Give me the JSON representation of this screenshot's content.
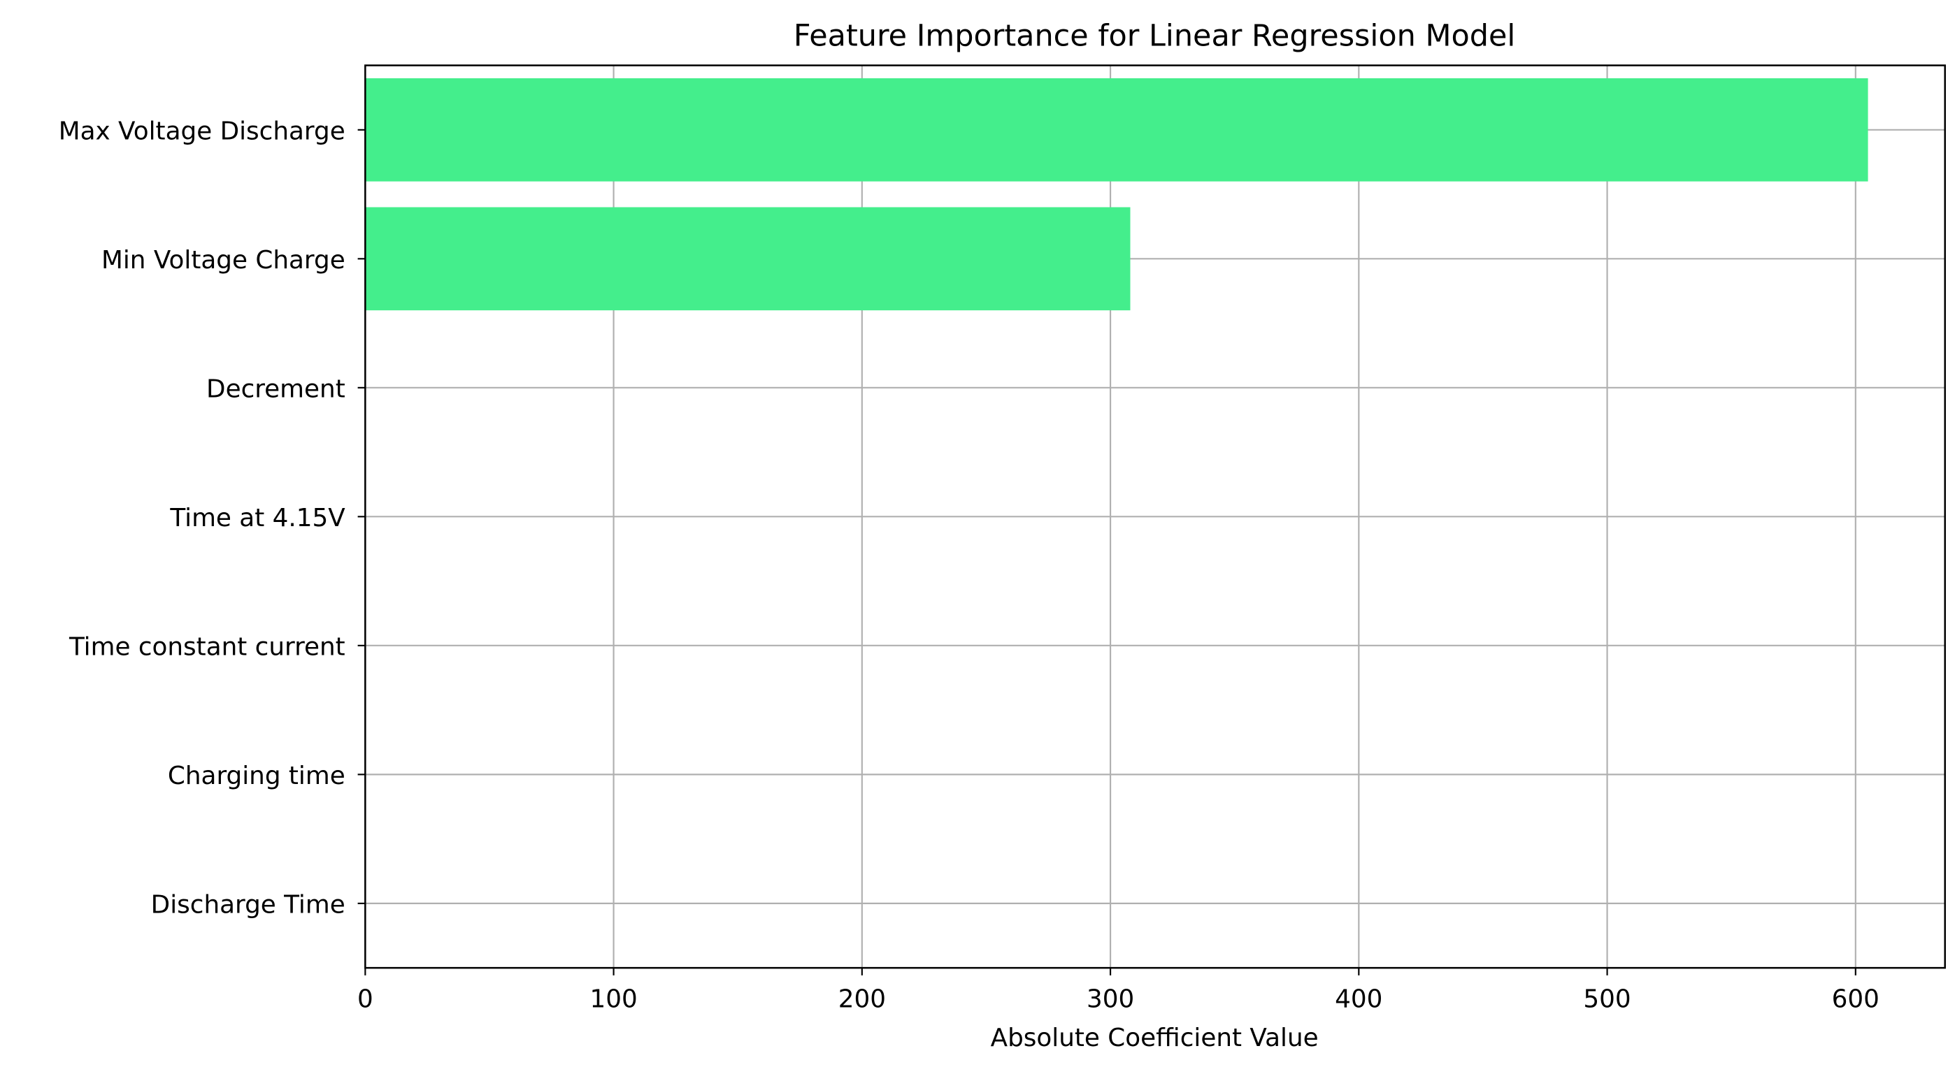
{
  "chart_data": {
    "type": "barh",
    "title": "Feature Importance for Linear Regression Model",
    "x_label": "Absolute Coefficient Value",
    "categories": [
      "Max Voltage Discharge",
      "Min Voltage Charge",
      "Decrement",
      "Time at 4.15V",
      "Time constant current",
      "Charging time",
      "Discharge Time"
    ],
    "values": [
      605,
      308,
      0,
      0,
      0,
      0,
      0
    ],
    "color": "#44ee8c",
    "xlim": [
      0,
      636
    ],
    "xticks": [
      0,
      100,
      200,
      300,
      400,
      500,
      600
    ],
    "grid": true
  }
}
